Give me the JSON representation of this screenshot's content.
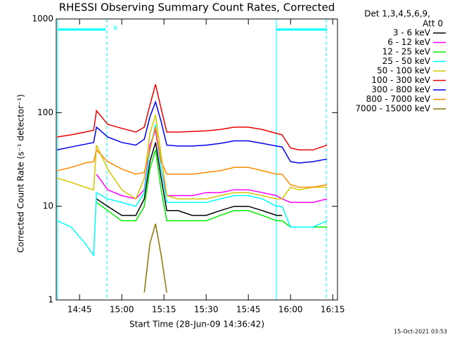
{
  "chart_data": {
    "type": "line",
    "log_y": true,
    "title": "RHESSI Observing Summary Count Rates, Corrected",
    "x_label": "Start Time (28-Jun-09 14:36:42)",
    "y_label": "Corrected Count Rate (s⁻¹ detector⁻¹)",
    "legend_header": [
      "Det 1,3,4,5,6,9,",
      "Att 0"
    ],
    "annotation": "N",
    "footer": "15-Oct-2021 03:53",
    "xlim": [
      876.7,
      976.7
    ],
    "xticks": [
      {
        "value": 885,
        "label": "14:45"
      },
      {
        "value": 900,
        "label": "15:00"
      },
      {
        "value": 915,
        "label": "15:15"
      },
      {
        "value": 930,
        "label": "15:30"
      },
      {
        "value": 945,
        "label": "15:45"
      },
      {
        "value": 960,
        "label": "16:00"
      },
      {
        "value": 975,
        "label": "16:15"
      }
    ],
    "ylim": [
      1,
      1000
    ],
    "yticks": [
      1,
      10,
      100,
      1000
    ],
    "x": [
      877,
      882,
      887,
      890,
      891,
      895,
      900,
      905,
      908,
      910,
      912,
      914,
      916,
      920,
      925,
      930,
      935,
      940,
      945,
      950,
      955,
      957,
      960,
      963,
      968,
      973
    ],
    "series": [
      {
        "name": "3 - 6 keV",
        "color": "#000000",
        "values": [
          null,
          null,
          null,
          null,
          12,
          10,
          8,
          8,
          12,
          30,
          48,
          20,
          9,
          9,
          8,
          8,
          9,
          10,
          10,
          9,
          8,
          8,
          null,
          null,
          null,
          null
        ]
      },
      {
        "name": "6 - 12 keV",
        "color": "#ff00ff",
        "values": [
          null,
          null,
          null,
          null,
          22,
          15,
          13,
          12,
          15,
          45,
          65,
          25,
          13,
          13,
          13,
          14,
          14,
          15,
          15,
          14,
          13,
          12,
          11,
          11,
          11,
          12
        ]
      },
      {
        "name": "12 - 25 keV",
        "color": "#00ee00",
        "values": [
          null,
          null,
          null,
          null,
          11,
          9,
          7,
          7,
          10,
          25,
          40,
          15,
          7,
          7,
          7,
          7,
          8,
          9,
          9,
          8,
          7,
          7,
          6,
          6,
          6,
          6
        ]
      },
      {
        "name": "25 - 50 keV",
        "color": "#00ffff",
        "values": [
          7,
          6,
          4,
          3,
          14,
          12,
          11,
          10,
          14,
          40,
          75,
          25,
          11,
          11,
          11,
          11,
          12,
          13,
          13,
          12,
          10,
          10,
          6,
          6,
          6,
          7
        ]
      },
      {
        "name": "50 - 100 keV",
        "color": "#d4c800",
        "values": [
          20,
          18,
          16,
          15,
          45,
          25,
          15,
          12,
          20,
          60,
          95,
          35,
          13,
          12,
          12,
          12,
          13,
          14,
          14,
          13,
          12,
          12,
          16,
          15,
          16,
          16
        ]
      },
      {
        "name": "100 - 300 keV",
        "color": "#ee0000",
        "values": [
          55,
          58,
          62,
          65,
          105,
          75,
          68,
          62,
          70,
          120,
          200,
          110,
          62,
          62,
          63,
          64,
          66,
          70,
          70,
          66,
          60,
          58,
          42,
          40,
          40,
          45
        ]
      },
      {
        "name": "300 - 800 keV",
        "color": "#0000ee",
        "values": [
          40,
          43,
          46,
          48,
          70,
          55,
          48,
          45,
          52,
          90,
          130,
          80,
          45,
          44,
          44,
          45,
          47,
          50,
          50,
          47,
          44,
          43,
          30,
          29,
          30,
          32
        ]
      },
      {
        "name": "800 - 7000 keV",
        "color": "#ff8c00",
        "values": [
          24,
          26,
          29,
          30,
          40,
          30,
          25,
          22,
          23,
          40,
          70,
          30,
          22,
          22,
          22,
          23,
          24,
          26,
          26,
          24,
          22,
          22,
          17,
          16,
          16,
          17
        ]
      },
      {
        "name": "7000 - 15000 keV",
        "color": "#8b7500",
        "values": [
          null,
          null,
          null,
          null,
          null,
          null,
          null,
          null,
          1.2,
          4,
          6.5,
          3,
          1.2,
          null,
          null,
          null,
          null,
          null,
          null,
          null,
          null,
          null,
          null,
          null,
          null,
          null
        ]
      }
    ]
  }
}
